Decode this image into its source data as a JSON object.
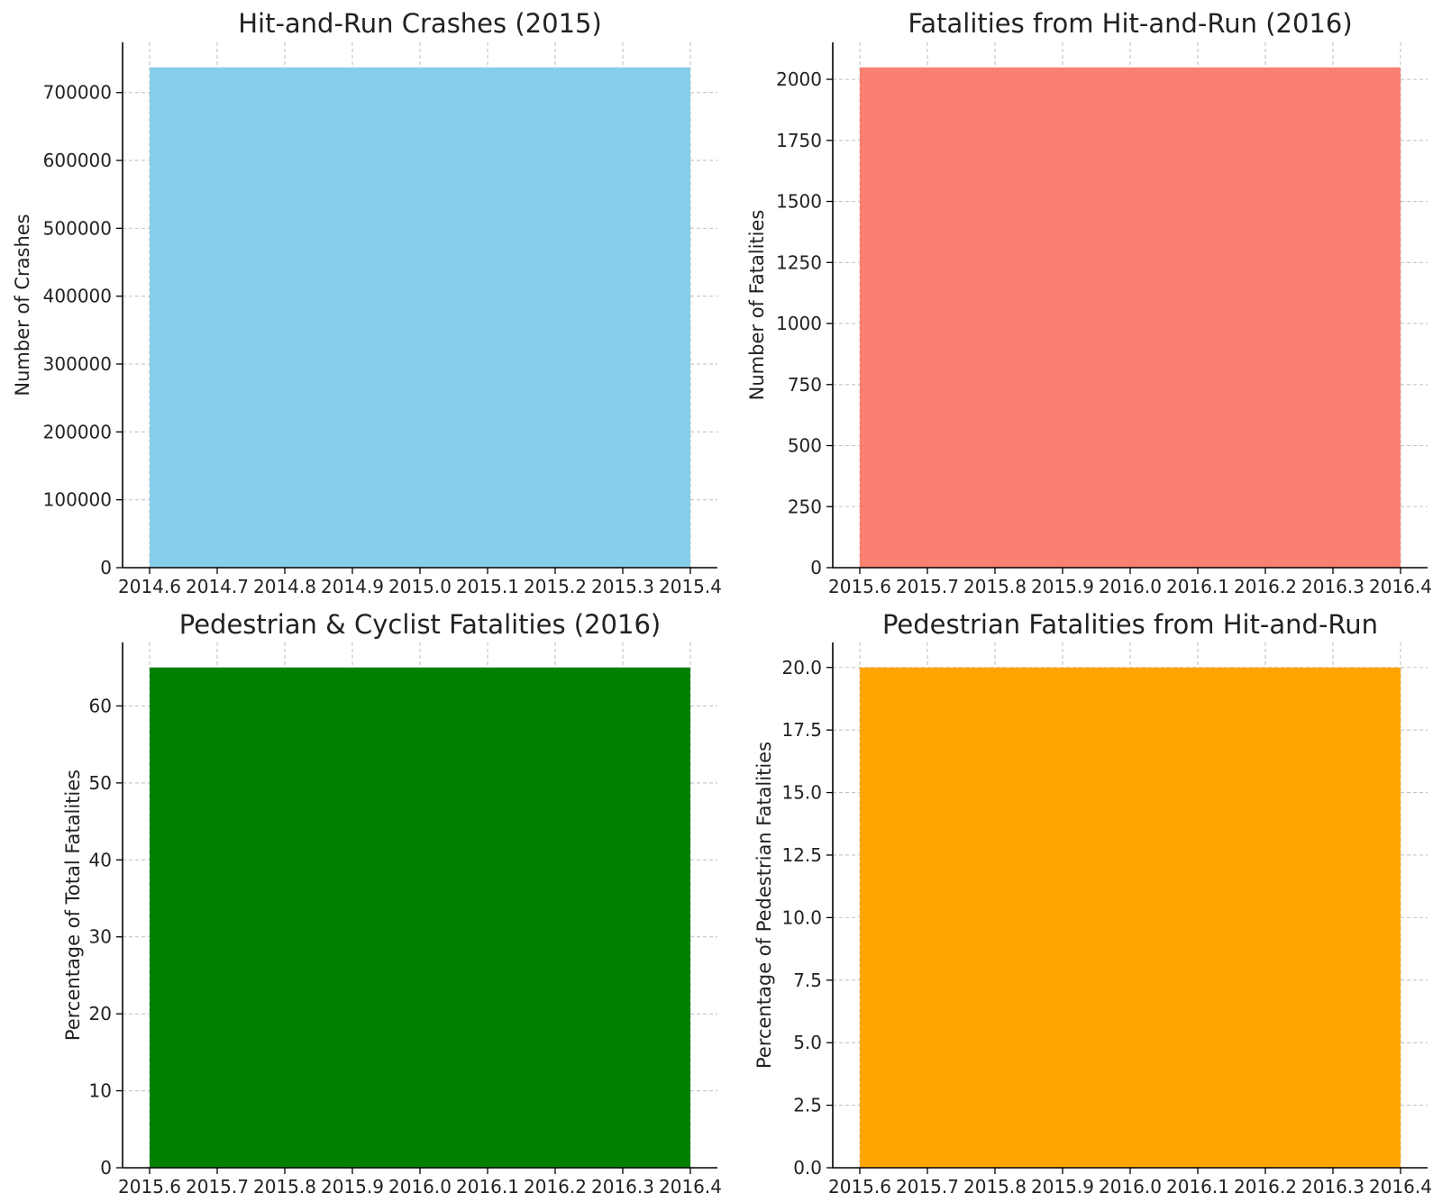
{
  "chart_data": [
    {
      "type": "bar",
      "title": "Hit-and-Run Crashes (2015)",
      "xlabel": "",
      "ylabel": "Number of Crashes",
      "categories": [
        2015
      ],
      "values": [
        737100
      ],
      "bar_span": [
        2014.6,
        2015.4
      ],
      "xlim": [
        2014.6,
        2015.4
      ],
      "ylim": [
        0,
        773955
      ],
      "xticks": [
        "2014.6",
        "2014.7",
        "2014.8",
        "2014.9",
        "2015.0",
        "2015.1",
        "2015.2",
        "2015.3",
        "2015.4"
      ],
      "yticks": [
        "0",
        "100000",
        "200000",
        "300000",
        "400000",
        "500000",
        "600000",
        "700000"
      ],
      "color": "#87CEEB",
      "grid": true
    },
    {
      "type": "bar",
      "title": "Fatalities from Hit-and-Run (2016)",
      "xlabel": "",
      "ylabel": "Number of Fatalities",
      "categories": [
        2016
      ],
      "values": [
        2049
      ],
      "bar_span": [
        2015.6,
        2016.4
      ],
      "xlim": [
        2015.6,
        2016.4
      ],
      "ylim": [
        0,
        2151.45
      ],
      "xticks": [
        "2015.6",
        "2015.7",
        "2015.8",
        "2015.9",
        "2016.0",
        "2016.1",
        "2016.2",
        "2016.3",
        "2016.4"
      ],
      "yticks": [
        "0",
        "250",
        "500",
        "750",
        "1000",
        "1250",
        "1500",
        "1750",
        "2000"
      ],
      "color": "#FA8072",
      "grid": true
    },
    {
      "type": "bar",
      "title": "Pedestrian & Cyclist Fatalities (2016)",
      "xlabel": "",
      "ylabel": "Percentage of Total Fatalities",
      "categories": [
        2016
      ],
      "values": [
        65
      ],
      "bar_span": [
        2015.6,
        2016.4
      ],
      "xlim": [
        2015.6,
        2016.4
      ],
      "ylim": [
        0,
        68.25
      ],
      "xticks": [
        "2015.6",
        "2015.7",
        "2015.8",
        "2015.9",
        "2016.0",
        "2016.1",
        "2016.2",
        "2016.3",
        "2016.4"
      ],
      "yticks": [
        "0",
        "10",
        "20",
        "30",
        "40",
        "50",
        "60"
      ],
      "color": "#008000",
      "grid": true
    },
    {
      "type": "bar",
      "title": "Pedestrian Fatalities from Hit-and-Run",
      "xlabel": "",
      "ylabel": "Percentage of Pedestrian Fatalities",
      "categories": [
        2016
      ],
      "values": [
        20
      ],
      "bar_span": [
        2015.6,
        2016.4
      ],
      "xlim": [
        2015.6,
        2016.4
      ],
      "ylim": [
        0,
        21
      ],
      "xticks": [
        "2015.6",
        "2015.7",
        "2015.8",
        "2015.9",
        "2016.0",
        "2016.1",
        "2016.2",
        "2016.3",
        "2016.4"
      ],
      "yticks": [
        "0.0",
        "2.5",
        "5.0",
        "7.5",
        "10.0",
        "12.5",
        "15.0",
        "17.5",
        "20.0"
      ],
      "color": "#FFA500",
      "grid": true
    }
  ]
}
